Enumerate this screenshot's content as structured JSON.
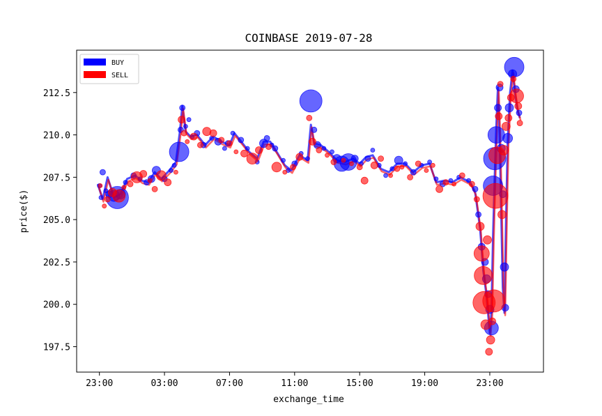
{
  "chart_data": {
    "type": "scatter",
    "title": "COINBASE 2019-07-28",
    "xlabel": "exchange_time",
    "ylabel": "price($)",
    "ylim": [
      196,
      215
    ],
    "xlim": [
      -1.4,
      27.3
    ],
    "yticks": [
      197.5,
      200.0,
      202.5,
      205.0,
      207.5,
      210.0,
      212.5
    ],
    "ytick_labels": [
      "197.5",
      "200.0",
      "202.5",
      "205.0",
      "207.5",
      "210.0",
      "212.5"
    ],
    "xticks": [
      0,
      4,
      8,
      12,
      16,
      20,
      24
    ],
    "xtick_labels": [
      "23:00",
      "03:00",
      "07:00",
      "11:00",
      "15:00",
      "19:00",
      "23:00"
    ],
    "legend_position": "top-left",
    "grid": false,
    "series": [
      {
        "name": "BUY",
        "color": "#0000ff",
        "points": [
          [
            0,
            207.0,
            3
          ],
          [
            0.1,
            206.3,
            3
          ],
          [
            0.2,
            207.8,
            4
          ],
          [
            0.4,
            206.7,
            3
          ],
          [
            0.6,
            206.5,
            5
          ],
          [
            0.9,
            206.4,
            8
          ],
          [
            1.1,
            206.3,
            16
          ],
          [
            1.3,
            206.5,
            7
          ],
          [
            1.6,
            207.2,
            3
          ],
          [
            2.1,
            207.6,
            4
          ],
          [
            2.5,
            207.4,
            3
          ],
          [
            2.9,
            207.2,
            4
          ],
          [
            3.2,
            207.4,
            5
          ],
          [
            3.5,
            207.9,
            6
          ],
          [
            4.0,
            207.4,
            4
          ],
          [
            4.4,
            207.9,
            3
          ],
          [
            4.6,
            208.2,
            3
          ],
          [
            4.9,
            209.0,
            14
          ],
          [
            5.0,
            210.3,
            4
          ],
          [
            5.1,
            211.6,
            4
          ],
          [
            5.3,
            210.5,
            3
          ],
          [
            5.5,
            210.9,
            3
          ],
          [
            5.7,
            209.9,
            3
          ],
          [
            6.0,
            210.1,
            4
          ],
          [
            6.4,
            209.4,
            4
          ],
          [
            6.9,
            209.8,
            3
          ],
          [
            7.3,
            209.6,
            5
          ],
          [
            7.7,
            209.2,
            3
          ],
          [
            7.9,
            209.5,
            4
          ],
          [
            8.2,
            210.1,
            3
          ],
          [
            8.7,
            209.7,
            4
          ],
          [
            9.1,
            209.2,
            3
          ],
          [
            9.7,
            208.4,
            3
          ],
          [
            10.1,
            209.5,
            6
          ],
          [
            10.3,
            209.8,
            4
          ],
          [
            10.6,
            209.4,
            3
          ],
          [
            10.8,
            209.2,
            4
          ],
          [
            11.3,
            208.5,
            3
          ],
          [
            11.6,
            207.9,
            3
          ],
          [
            12.0,
            208.3,
            4
          ],
          [
            12.4,
            208.9,
            3
          ],
          [
            12.8,
            208.6,
            3
          ],
          [
            13.0,
            212.0,
            16
          ],
          [
            13.2,
            210.3,
            4
          ],
          [
            13.4,
            209.4,
            5
          ],
          [
            13.8,
            209.2,
            3
          ],
          [
            14.3,
            209.0,
            3
          ],
          [
            14.6,
            208.6,
            6
          ],
          [
            14.9,
            208.3,
            11
          ],
          [
            15.3,
            208.4,
            12
          ],
          [
            15.7,
            208.6,
            5
          ],
          [
            16.1,
            208.3,
            3
          ],
          [
            16.5,
            208.6,
            4
          ],
          [
            16.8,
            209.1,
            3
          ],
          [
            17.2,
            208.2,
            3
          ],
          [
            17.6,
            207.6,
            3
          ],
          [
            18.0,
            208.0,
            3
          ],
          [
            18.4,
            208.5,
            6
          ],
          [
            18.8,
            208.3,
            3
          ],
          [
            19.3,
            207.8,
            4
          ],
          [
            19.8,
            208.2,
            3
          ],
          [
            20.3,
            208.4,
            3
          ],
          [
            20.7,
            207.4,
            3
          ],
          [
            21.1,
            207.1,
            4
          ],
          [
            21.6,
            207.3,
            3
          ],
          [
            22.1,
            207.5,
            3
          ],
          [
            22.7,
            207.3,
            3
          ],
          [
            23.1,
            206.8,
            4
          ],
          [
            23.3,
            205.3,
            4
          ],
          [
            23.5,
            203.4,
            5
          ],
          [
            23.7,
            202.5,
            5
          ],
          [
            23.8,
            201.5,
            6
          ],
          [
            23.9,
            200.6,
            5
          ],
          [
            24.0,
            199.7,
            6
          ],
          [
            24.1,
            198.6,
            10
          ],
          [
            24.2,
            207.0,
            14
          ],
          [
            24.3,
            208.6,
            16
          ],
          [
            24.4,
            210.0,
            12
          ],
          [
            24.5,
            211.6,
            5
          ],
          [
            24.6,
            212.8,
            5
          ],
          [
            24.7,
            209.2,
            6
          ],
          [
            24.8,
            206.5,
            5
          ],
          [
            24.9,
            202.2,
            6
          ],
          [
            24.95,
            199.8,
            5
          ],
          [
            25.1,
            209.8,
            7
          ],
          [
            25.2,
            211.6,
            6
          ],
          [
            25.4,
            213.6,
            6
          ],
          [
            25.5,
            214.0,
            14
          ],
          [
            25.6,
            212.7,
            5
          ],
          [
            25.8,
            211.3,
            4
          ]
        ]
      },
      {
        "name": "SELL",
        "color": "#ff0000",
        "points": [
          [
            0.05,
            207.0,
            3
          ],
          [
            0.3,
            205.8,
            3
          ],
          [
            0.5,
            206.2,
            4
          ],
          [
            0.8,
            206.6,
            6
          ],
          [
            1.2,
            206.4,
            9
          ],
          [
            1.5,
            206.9,
            3
          ],
          [
            1.9,
            207.1,
            4
          ],
          [
            2.3,
            207.5,
            8
          ],
          [
            2.7,
            207.7,
            5
          ],
          [
            3.1,
            207.3,
            3
          ],
          [
            3.4,
            206.8,
            4
          ],
          [
            3.8,
            207.6,
            7
          ],
          [
            4.2,
            207.2,
            5
          ],
          [
            4.7,
            207.8,
            3
          ],
          [
            5.05,
            210.9,
            5
          ],
          [
            5.2,
            210.1,
            4
          ],
          [
            5.4,
            209.6,
            3
          ],
          [
            5.8,
            209.9,
            5
          ],
          [
            6.2,
            209.4,
            4
          ],
          [
            6.6,
            210.2,
            6
          ],
          [
            7.0,
            210.1,
            5
          ],
          [
            7.5,
            209.7,
            4
          ],
          [
            8.0,
            209.5,
            4
          ],
          [
            8.4,
            209.0,
            3
          ],
          [
            8.9,
            208.9,
            5
          ],
          [
            9.4,
            208.6,
            8
          ],
          [
            9.8,
            209.1,
            5
          ],
          [
            10.4,
            209.3,
            4
          ],
          [
            10.9,
            208.1,
            7
          ],
          [
            11.4,
            207.8,
            3
          ],
          [
            11.9,
            208.1,
            4
          ],
          [
            12.3,
            208.7,
            5
          ],
          [
            12.9,
            211.0,
            4
          ],
          [
            13.1,
            209.6,
            5
          ],
          [
            13.5,
            209.1,
            4
          ],
          [
            14.0,
            208.8,
            3
          ],
          [
            14.4,
            208.4,
            4
          ],
          [
            15.0,
            208.5,
            3
          ],
          [
            15.5,
            208.3,
            3
          ],
          [
            16.0,
            208.1,
            4
          ],
          [
            16.3,
            207.3,
            5
          ],
          [
            16.9,
            208.2,
            5
          ],
          [
            17.3,
            208.6,
            4
          ],
          [
            17.9,
            207.6,
            3
          ],
          [
            18.3,
            208.0,
            4
          ],
          [
            18.6,
            208.1,
            3
          ],
          [
            19.1,
            207.5,
            4
          ],
          [
            19.6,
            208.3,
            4
          ],
          [
            20.1,
            207.9,
            3
          ],
          [
            20.5,
            208.2,
            3
          ],
          [
            20.9,
            206.8,
            5
          ],
          [
            21.3,
            207.2,
            4
          ],
          [
            21.8,
            207.1,
            3
          ],
          [
            22.3,
            207.6,
            4
          ],
          [
            22.9,
            207.1,
            4
          ],
          [
            23.2,
            206.2,
            4
          ],
          [
            23.4,
            204.6,
            6
          ],
          [
            23.5,
            203.0,
            11
          ],
          [
            23.6,
            201.7,
            13
          ],
          [
            23.65,
            200.1,
            16
          ],
          [
            23.75,
            198.8,
            7
          ],
          [
            23.85,
            203.8,
            6
          ],
          [
            23.95,
            197.2,
            5
          ],
          [
            24.05,
            197.9,
            6
          ],
          [
            24.15,
            199.0,
            5
          ],
          [
            24.25,
            200.2,
            16
          ],
          [
            24.35,
            206.4,
            18
          ],
          [
            24.45,
            208.8,
            12
          ],
          [
            24.55,
            211.1,
            5
          ],
          [
            24.65,
            213.0,
            4
          ],
          [
            24.75,
            205.3,
            6
          ],
          [
            24.85,
            209.1,
            7
          ],
          [
            25.0,
            210.5,
            6
          ],
          [
            25.15,
            211.0,
            5
          ],
          [
            25.3,
            212.2,
            5
          ],
          [
            25.45,
            213.3,
            4
          ],
          [
            25.65,
            212.3,
            10
          ],
          [
            25.75,
            211.7,
            5
          ],
          [
            25.85,
            210.7,
            4
          ]
        ]
      }
    ],
    "buy_path": [
      [
        -0.1,
        207.1
      ],
      [
        0.2,
        206.2
      ],
      [
        0.5,
        207.5
      ],
      [
        0.9,
        206.3
      ],
      [
        1.3,
        206.5
      ],
      [
        1.7,
        207.4
      ],
      [
        2.2,
        207.6
      ],
      [
        2.6,
        207.3
      ],
      [
        3.0,
        207.2
      ],
      [
        3.4,
        207.8
      ],
      [
        3.8,
        207.4
      ],
      [
        4.3,
        207.9
      ],
      [
        4.7,
        208.4
      ],
      [
        4.95,
        210.2
      ],
      [
        5.1,
        211.7
      ],
      [
        5.3,
        210.2
      ],
      [
        5.6,
        209.9
      ],
      [
        6.0,
        210.0
      ],
      [
        6.5,
        209.4
      ],
      [
        7.0,
        209.9
      ],
      [
        7.5,
        209.6
      ],
      [
        8.0,
        209.4
      ],
      [
        8.3,
        210.1
      ],
      [
        8.8,
        209.5
      ],
      [
        9.2,
        209.0
      ],
      [
        9.7,
        208.6
      ],
      [
        10.1,
        209.6
      ],
      [
        10.5,
        209.6
      ],
      [
        10.9,
        209.0
      ],
      [
        11.4,
        208.2
      ],
      [
        11.8,
        207.9
      ],
      [
        12.3,
        208.8
      ],
      [
        12.8,
        208.5
      ],
      [
        13.0,
        210.6
      ],
      [
        13.2,
        209.5
      ],
      [
        13.6,
        209.4
      ],
      [
        14.1,
        209.0
      ],
      [
        14.6,
        208.5
      ],
      [
        15.1,
        208.4
      ],
      [
        15.6,
        208.6
      ],
      [
        16.0,
        208.3
      ],
      [
        16.4,
        208.7
      ],
      [
        16.8,
        208.8
      ],
      [
        17.3,
        208.0
      ],
      [
        17.8,
        207.8
      ],
      [
        18.3,
        208.3
      ],
      [
        18.8,
        208.3
      ],
      [
        19.3,
        207.8
      ],
      [
        19.8,
        208.2
      ],
      [
        20.3,
        208.3
      ],
      [
        20.7,
        207.2
      ],
      [
        21.2,
        207.3
      ],
      [
        21.7,
        207.2
      ],
      [
        22.2,
        207.5
      ],
      [
        22.8,
        207.2
      ],
      [
        23.1,
        206.6
      ],
      [
        23.4,
        204.5
      ],
      [
        23.6,
        202.0
      ],
      [
        23.8,
        200.5
      ],
      [
        24.0,
        198.3
      ],
      [
        24.1,
        199.5
      ],
      [
        24.2,
        204.0
      ],
      [
        24.3,
        207.5
      ],
      [
        24.4,
        210.5
      ],
      [
        24.5,
        212.8
      ],
      [
        24.6,
        210.0
      ],
      [
        24.7,
        205.5
      ],
      [
        24.8,
        201.0
      ],
      [
        24.9,
        199.5
      ],
      [
        25.0,
        205.0
      ],
      [
        25.1,
        209.5
      ],
      [
        25.25,
        212.5
      ],
      [
        25.4,
        213.8
      ],
      [
        25.55,
        212.5
      ],
      [
        25.7,
        211.5
      ],
      [
        25.85,
        211.0
      ]
    ]
  }
}
